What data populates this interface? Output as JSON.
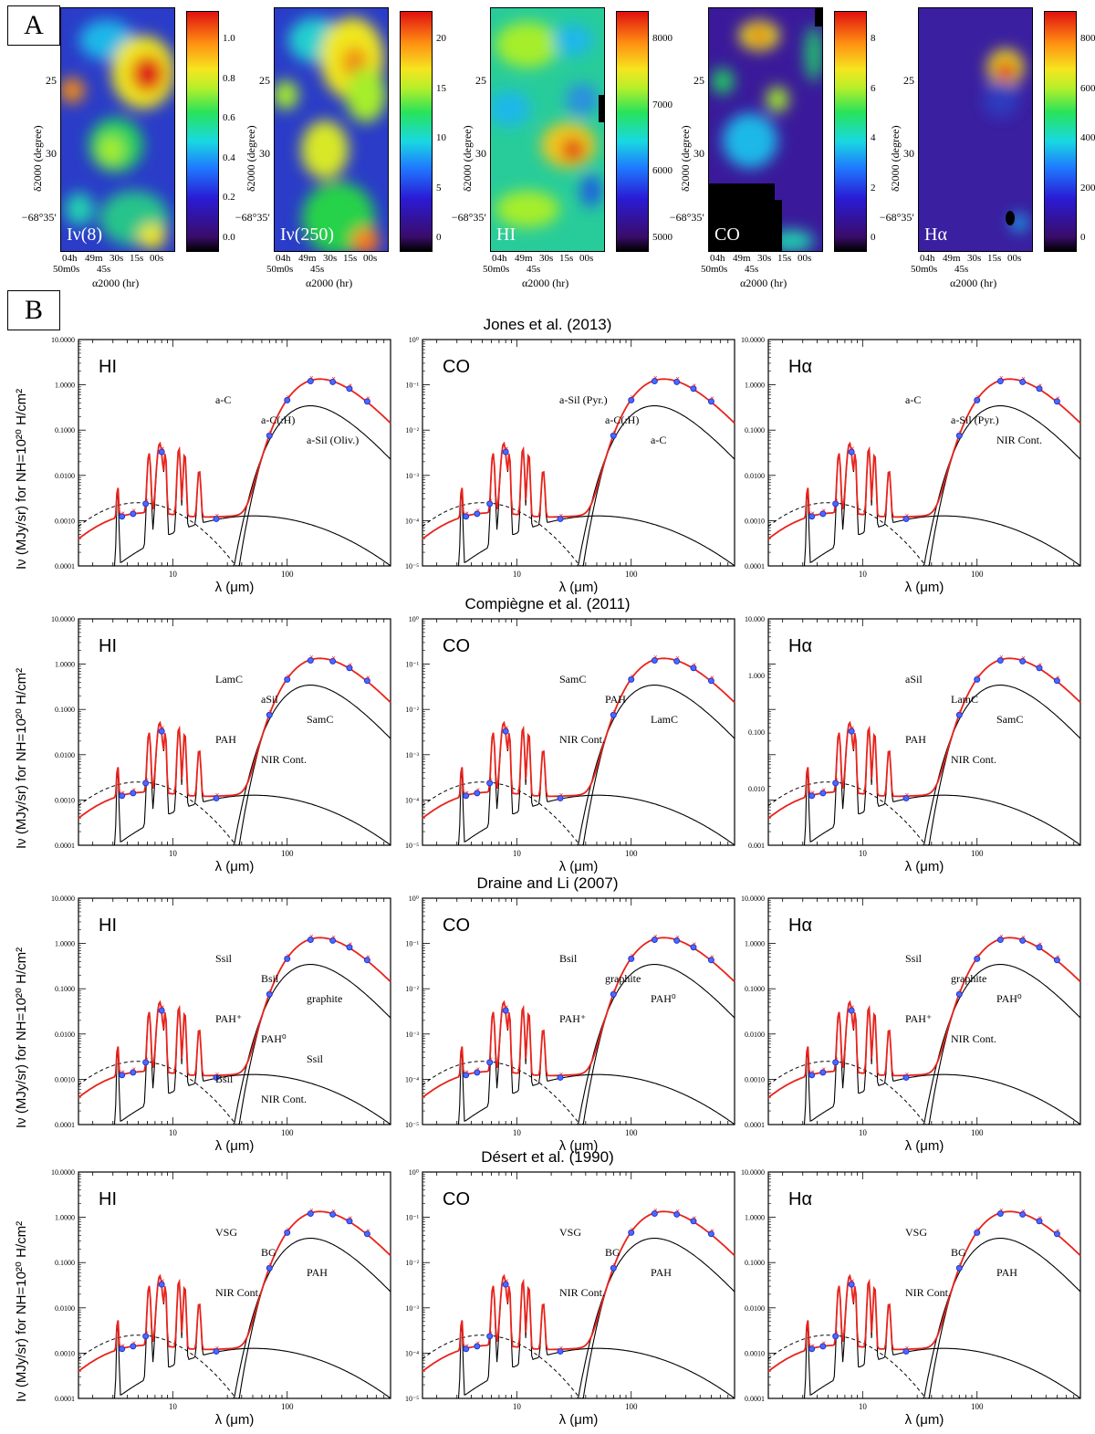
{
  "panel_a_label": "A",
  "panel_b_label": "B",
  "maps": [
    {
      "tag": "Iν(8)",
      "cbar_ticks": [
        "1.0",
        "0.8",
        "0.6",
        "0.4",
        "0.2",
        "0.0"
      ],
      "type": "i8"
    },
    {
      "tag": "Iν(250)",
      "cbar_ticks": [
        "20",
        "15",
        "10",
        "5",
        "0"
      ],
      "type": "i250"
    },
    {
      "tag": "HI",
      "cbar_ticks": [
        "8000",
        "7000",
        "6000",
        "5000"
      ],
      "type": "hi"
    },
    {
      "tag": "CO",
      "cbar_ticks": [
        "8",
        "6",
        "4",
        "2",
        "0"
      ],
      "type": "co"
    },
    {
      "tag": "Hα",
      "cbar_ticks": [
        "800",
        "600",
        "400",
        "200",
        "0"
      ],
      "type": "ha"
    }
  ],
  "map_axes": {
    "y_ticks": [
      "25",
      "30",
      "−68°35′"
    ],
    "y_label": "δ2000 (degree)",
    "x_ticks_top": [
      "04h",
      "49m",
      "30s",
      "15s",
      "00s"
    ],
    "x_ticks_bottom": [
      "50m0s",
      "45s"
    ],
    "x_label": "α2000 (hr)"
  },
  "rows": [
    {
      "title": "Jones et al. (2013)"
    },
    {
      "title": "Compiègne et al. (2011)"
    },
    {
      "title": "Draine and Li (2007)"
    },
    {
      "title": "Désert et al. (1990)"
    }
  ],
  "shared": {
    "ylabel": "Iν (MJy/sr) for NH=10²⁰ H/cm²",
    "xlabel": "λ (μm)",
    "x_ticks": [
      "10",
      "100"
    ],
    "col_labels": [
      "HI",
      "CO",
      "Hα"
    ],
    "y_ticks_HI": [
      "10.0000",
      "1.0000",
      "0.1000",
      "0.0100",
      "0.0010",
      "0.0001"
    ],
    "y_ticks_CO": [
      "10⁰",
      "10⁻¹",
      "10⁻²",
      "10⁻³",
      "10⁻⁴",
      "10⁻⁵"
    ]
  },
  "chart_data": [
    {
      "type": "line",
      "title": "Jones et al. (2013)",
      "panel": "HI",
      "xlabel": "λ (μm)",
      "log_x": true,
      "log_y": true,
      "xlim": [
        1.5,
        800
      ],
      "ylim": [
        0.0001,
        10
      ],
      "y_ticks": [
        "10.0000",
        "1.0000",
        "0.1000",
        "0.0100",
        "0.0010",
        "0.0001"
      ],
      "series": [
        {
          "name": "a-C",
          "peak_um": 150,
          "peak": 1.0
        },
        {
          "name": "a-C(:H)",
          "peak_um": 20,
          "peak": 0.03
        },
        {
          "name": "a-Sil (Oliv.)",
          "peak_um": 180,
          "peak": 0.027
        }
      ],
      "annotations": [
        "a-C",
        "a-C(:H)",
        "a-Sil (Oliv.)"
      ]
    },
    {
      "type": "line",
      "title": "Jones et al. (2013)",
      "panel": "CO",
      "xlabel": "λ (μm)",
      "log_x": true,
      "log_y": true,
      "xlim": [
        1.5,
        800
      ],
      "ylim": [
        1e-05,
        1
      ],
      "y_ticks": [
        "10⁰",
        "10⁻¹",
        "10⁻²",
        "10⁻³",
        "10⁻⁴",
        "10⁻⁵"
      ],
      "annotations": [
        "a-Sil (Pyr.)",
        "a-C(:H)",
        "a-C"
      ]
    },
    {
      "type": "line",
      "title": "Jones et al. (2013)",
      "panel": "Hα",
      "xlabel": "λ (μm)",
      "log_x": true,
      "log_y": true,
      "xlim": [
        1.5,
        800
      ],
      "ylim": [
        0.0001,
        10
      ],
      "y_ticks": [
        "10.0000",
        "1.0000",
        "0.1000",
        "0.0100",
        "0.0010",
        "0.0001"
      ],
      "annotations": [
        "a-C",
        "a-Sil (Pyr.)",
        "NIR Cont."
      ]
    },
    {
      "type": "line",
      "title": "Compiègne et al. (2011)",
      "panel": "HI",
      "xlabel": "λ (μm)",
      "log_x": true,
      "log_y": true,
      "xlim": [
        1.5,
        800
      ],
      "ylim": [
        0.0001,
        10
      ],
      "y_ticks": [
        "10.0000",
        "1.0000",
        "0.1000",
        "0.0100",
        "0.0010",
        "0.0001"
      ],
      "annotations": [
        "LamC",
        "aSil",
        "SamC",
        "PAH",
        "NIR Cont."
      ]
    },
    {
      "type": "line",
      "title": "Compiègne et al. (2011)",
      "panel": "CO",
      "xlabel": "λ (μm)",
      "log_x": true,
      "log_y": true,
      "xlim": [
        1.5,
        800
      ],
      "ylim": [
        1e-05,
        1
      ],
      "y_ticks": [
        "10⁰",
        "10⁻¹",
        "10⁻²",
        "10⁻³",
        "10⁻⁴",
        "10⁻⁵"
      ],
      "annotations": [
        "SamC",
        "PAH",
        "LamC",
        "NIR Cont."
      ]
    },
    {
      "type": "line",
      "title": "Compiègne et al. (2011)",
      "panel": "Hα",
      "xlabel": "λ (μm)",
      "log_x": true,
      "log_y": true,
      "xlim": [
        1.5,
        800
      ],
      "ylim": [
        0.001,
        10
      ],
      "y_ticks": [
        "10.000",
        "1.000",
        "0.100",
        "0.010",
        "0.001"
      ],
      "annotations": [
        "aSil",
        "LamC",
        "SamC",
        "PAH",
        "NIR Cont."
      ]
    },
    {
      "type": "line",
      "title": "Draine and Li (2007)",
      "panel": "HI",
      "xlabel": "λ (μm)",
      "log_x": true,
      "log_y": true,
      "xlim": [
        1.5,
        800
      ],
      "ylim": [
        0.0001,
        10
      ],
      "y_ticks": [
        "10.0000",
        "1.0000",
        "0.1000",
        "0.0100",
        "0.0010",
        "0.0001"
      ],
      "annotations": [
        "Ssil",
        "Bsil",
        "graphite",
        "PAH⁺",
        "PAH⁰",
        "Ssil",
        "Bsil",
        "NIR Cont."
      ]
    },
    {
      "type": "line",
      "title": "Draine and Li (2007)",
      "panel": "CO",
      "xlabel": "λ (μm)",
      "log_x": true,
      "log_y": true,
      "xlim": [
        1.5,
        800
      ],
      "ylim": [
        1e-05,
        1
      ],
      "y_ticks": [
        "10⁰",
        "10⁻¹",
        "10⁻²",
        "10⁻³",
        "10⁻⁴",
        "10⁻⁵"
      ],
      "annotations": [
        "Bsil",
        "graphite",
        "PAH⁰",
        "PAH⁺"
      ]
    },
    {
      "type": "line",
      "title": "Draine and Li (2007)",
      "panel": "Hα",
      "xlabel": "λ (μm)",
      "log_x": true,
      "log_y": true,
      "xlim": [
        1.5,
        800
      ],
      "ylim": [
        0.0001,
        10
      ],
      "y_ticks": [
        "10.0000",
        "1.0000",
        "0.1000",
        "0.0100",
        "0.0010",
        "0.0001"
      ],
      "annotations": [
        "Ssil",
        "graphite",
        "PAH⁰",
        "PAH⁺",
        "NIR Cont."
      ]
    },
    {
      "type": "line",
      "title": "Désert et al. (1990)",
      "panel": "HI",
      "xlabel": "λ (μm)",
      "log_x": true,
      "log_y": true,
      "xlim": [
        1.5,
        800
      ],
      "ylim": [
        0.0001,
        10
      ],
      "y_ticks": [
        "10.0000",
        "1.0000",
        "0.1000",
        "0.0100",
        "0.0010",
        "0.0001"
      ],
      "annotations": [
        "VSG",
        "BG",
        "PAH",
        "NIR Cont."
      ]
    },
    {
      "type": "line",
      "title": "Désert et al. (1990)",
      "panel": "CO",
      "xlabel": "λ (μm)",
      "log_x": true,
      "log_y": true,
      "xlim": [
        1.5,
        800
      ],
      "ylim": [
        1e-05,
        1
      ],
      "y_ticks": [
        "10⁰",
        "10⁻¹",
        "10⁻²",
        "10⁻³",
        "10⁻⁴",
        "10⁻⁵"
      ],
      "annotations": [
        "VSG",
        "BG",
        "PAH",
        "NIR Cont."
      ]
    },
    {
      "type": "line",
      "title": "Désert et al. (1990)",
      "panel": "Hα",
      "xlabel": "λ (μm)",
      "log_x": true,
      "log_y": true,
      "xlim": [
        1.5,
        800
      ],
      "ylim": [
        0.0001,
        10
      ],
      "y_ticks": [
        "10.0000",
        "1.0000",
        "0.1000",
        "0.0100",
        "0.0010",
        "0.0001"
      ],
      "annotations": [
        "VSG",
        "BG",
        "PAH",
        "NIR Cont."
      ]
    }
  ],
  "colors": {
    "model_total": "#e8231c",
    "data_blue": "#1f35d6",
    "data_red": "#e8231c",
    "components": "#000000"
  }
}
